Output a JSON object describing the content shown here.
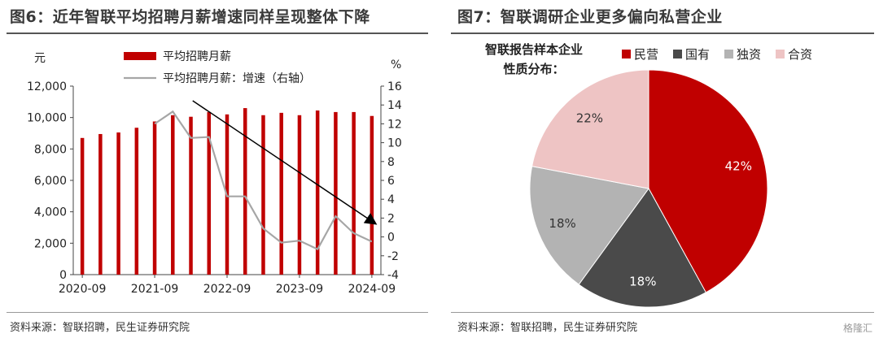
{
  "left": {
    "title": "图6：近年智联平均招聘月薪增速同样呈现整体下降",
    "source": "资料来源：智联招聘，民生证券研究院"
  },
  "right": {
    "title": "图7：智联调研企业更多偏向私营企业",
    "source": "资料来源：智联招聘，民生证券研究院"
  },
  "watermark": "格隆汇",
  "colors": {
    "bar": "#c00000",
    "line": "#a6a6a6",
    "arrow": "#000000"
  },
  "chart_data": [
    {
      "type": "bar",
      "y_unit_left": "元",
      "y_unit_right": "%",
      "ylim": [
        0,
        12000
      ],
      "ylim_right": [
        -4,
        16
      ],
      "yticks": [
        "0",
        "2,000",
        "4,000",
        "6,000",
        "8,000",
        "10,000",
        "12,000"
      ],
      "yticks_right": [
        "-4",
        "-2",
        "0",
        "2",
        "4",
        "6",
        "8",
        "10",
        "12",
        "14",
        "16"
      ],
      "xtick_labels": [
        "2020-09",
        "2021-09",
        "2022-09",
        "2023-09",
        "2024-09"
      ],
      "xtick_index": [
        0,
        4,
        8,
        12,
        16
      ],
      "legend_position": "top",
      "series": [
        {
          "name": "平均招聘月薪",
          "type": "bar",
          "values": [
            8700,
            8950,
            9050,
            9350,
            9750,
            10150,
            10050,
            10350,
            10200,
            10600,
            10150,
            10300,
            10150,
            10450,
            10350,
            10350,
            10100
          ]
        },
        {
          "name": "平均招聘月薪：增速（右轴）",
          "type": "line",
          "axis": "right",
          "values": [
            null,
            null,
            null,
            null,
            12.0,
            13.3,
            10.5,
            10.6,
            4.3,
            4.3,
            0.9,
            -0.6,
            -0.4,
            -1.3,
            2.2,
            0.4,
            -0.5
          ]
        }
      ],
      "annotation": "downward trend arrow"
    },
    {
      "type": "pie",
      "title": "智联报告样本企业性质分布：",
      "legend_position": "top",
      "categories": [
        "民营",
        "国有",
        "独资",
        "合资"
      ],
      "values": [
        42,
        18,
        18,
        22
      ],
      "labels": [
        "42%",
        "18%",
        "18%",
        "22%"
      ],
      "colors": [
        "#c00000",
        "#4a4a4a",
        "#b3b3b3",
        "#eec4c4"
      ]
    }
  ]
}
